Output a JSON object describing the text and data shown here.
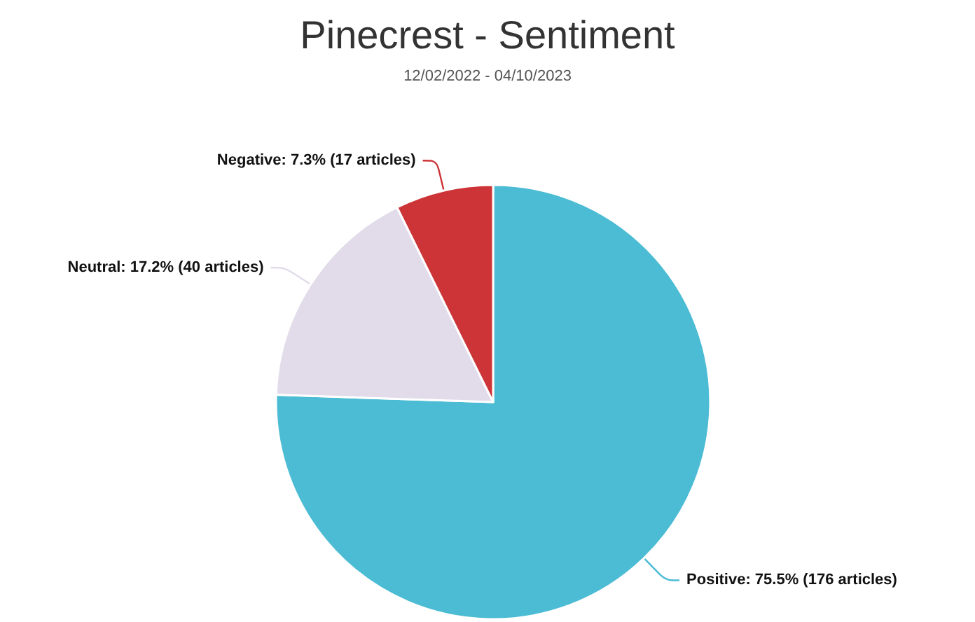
{
  "chart_data": {
    "type": "pie",
    "title": "Pinecrest - Sentiment",
    "subtitle": "12/02/2022 - 04/10/2023",
    "categories": [
      "Positive",
      "Neutral",
      "Negative"
    ],
    "values": [
      176,
      40,
      17
    ],
    "value_labels": [
      "75.5% (176 articles)",
      "17.2% (40 articles)",
      "7.3% (17 articles)"
    ],
    "colors": [
      "#4bbcd4",
      "#e2dcea",
      "#cc3438"
    ],
    "legend": false
  }
}
